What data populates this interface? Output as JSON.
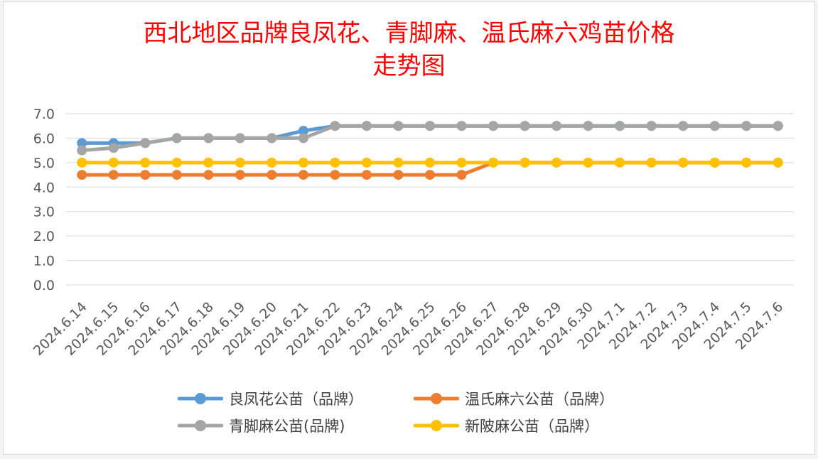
{
  "title_lines": [
    "西北地区品牌良凤花、青脚麻、温氏麻六鸡苗价格",
    "走势图"
  ],
  "chart_data": {
    "type": "line",
    "title": "西北地区品牌良凤花、青脚麻、温氏麻六鸡苗价格走势图",
    "xlabel": "",
    "ylabel": "",
    "ylim": [
      0,
      7
    ],
    "y_ticks": [
      "0.0",
      "1.0",
      "2.0",
      "3.0",
      "4.0",
      "5.0",
      "6.0",
      "7.0"
    ],
    "grid": true,
    "legend_position": "bottom",
    "categories": [
      "2024.6.14",
      "2024.6.15",
      "2024.6.16",
      "2024.6.17",
      "2024.6.18",
      "2024.6.19",
      "2024.6.20",
      "2024.6.21",
      "2024.6.22",
      "2024.6.23",
      "2024.6.24",
      "2024.6.25",
      "2024.6.26",
      "2024.6.27",
      "2024.6.28",
      "2024.6.29",
      "2024.6.30",
      "2024.7.1",
      "2024.7.2",
      "2024.7.3",
      "2024.7.4",
      "2024.7.5",
      "2024.7.6"
    ],
    "series": [
      {
        "name": "良凤花公苗（品牌）",
        "color": "#5b9bd5",
        "values": [
          5.8,
          5.8,
          5.8,
          6.0,
          6.0,
          6.0,
          6.0,
          6.3,
          6.5,
          6.5,
          6.5,
          6.5,
          6.5,
          6.5,
          6.5,
          6.5,
          6.5,
          6.5,
          6.5,
          6.5,
          6.5,
          6.5,
          6.5
        ]
      },
      {
        "name": "温氏麻六公苗（品牌）",
        "color": "#ed7d31",
        "values": [
          4.5,
          4.5,
          4.5,
          4.5,
          4.5,
          4.5,
          4.5,
          4.5,
          4.5,
          4.5,
          4.5,
          4.5,
          4.5,
          5.0,
          5.0,
          5.0,
          5.0,
          5.0,
          5.0,
          5.0,
          5.0,
          5.0,
          5.0
        ]
      },
      {
        "name": "青脚麻公苗(品牌)",
        "color": "#a5a5a5",
        "values": [
          5.5,
          5.6,
          5.8,
          6.0,
          6.0,
          6.0,
          6.0,
          6.0,
          6.5,
          6.5,
          6.5,
          6.5,
          6.5,
          6.5,
          6.5,
          6.5,
          6.5,
          6.5,
          6.5,
          6.5,
          6.5,
          6.5,
          6.5
        ]
      },
      {
        "name": "新陂麻公苗（品牌）",
        "color": "#ffc000",
        "values": [
          5.0,
          5.0,
          5.0,
          5.0,
          5.0,
          5.0,
          5.0,
          5.0,
          5.0,
          5.0,
          5.0,
          5.0,
          5.0,
          5.0,
          5.0,
          5.0,
          5.0,
          5.0,
          5.0,
          5.0,
          5.0,
          5.0,
          5.0
        ]
      }
    ]
  }
}
